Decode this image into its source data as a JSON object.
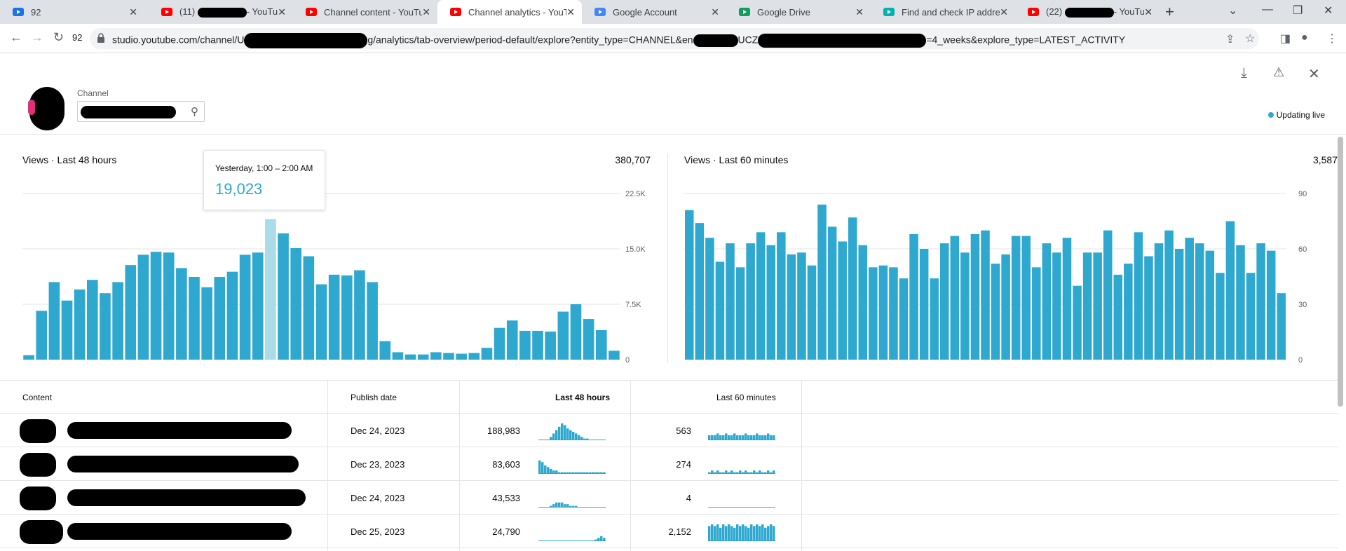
{
  "browser": {
    "tabs": [
      {
        "title": "92",
        "icon": "app-icon",
        "color": "#1a73e8"
      },
      {
        "title": "(11) ",
        "suffix": "- YouTube",
        "icon": "youtube-icon",
        "color": "#ff0000"
      },
      {
        "title": "Channel content - YouTube",
        "icon": "youtube-icon",
        "color": "#ff0000"
      },
      {
        "title": "Channel analytics - YouTube",
        "icon": "youtube-icon",
        "color": "#ff0000"
      },
      {
        "title": "Google Account",
        "icon": "google-icon",
        "color": "#4285f4"
      },
      {
        "title": "Google Drive",
        "icon": "drive-icon",
        "color": "#0f9d58"
      },
      {
        "title": "Find and check IP address",
        "icon": "web-icon",
        "color": "#00b3b3"
      },
      {
        "title": "(22) ",
        "suffix": "- YouTube",
        "icon": "youtube-icon",
        "color": "#ff0000"
      }
    ],
    "active_tab": 3,
    "profile_label": "92",
    "url": "studio.youtube.com/channel/U",
    "url_mid": "g/analytics/tab-overview/period-default/explore?entity_type=CHANNEL&en",
    "url_mid2": "UCZ",
    "url_end": "=4_weeks&explore_type=LATEST_ACTIVITY"
  },
  "header": {
    "channel_label": "Channel",
    "updating_live": "Updating live"
  },
  "chart48": {
    "title": "Views · Last 48 hours",
    "total": "380,707",
    "tooltip_time": "Yesterday, 1:00 – 2:00 AM",
    "tooltip_value": "19,023"
  },
  "chart60": {
    "title": "Views · Last 60 minutes",
    "total": "3,587"
  },
  "chart_data": [
    {
      "type": "bar",
      "title": "Views · Last 48 hours",
      "ylim": [
        0,
        22500
      ],
      "yticks": [
        "0",
        "7.5K",
        "15.0K",
        "22.5K"
      ],
      "ytick_values": [
        0,
        7500,
        15000,
        22500
      ],
      "highlight_index": 19,
      "values": [
        600,
        6600,
        10500,
        8000,
        9500,
        10800,
        9000,
        10500,
        12800,
        14200,
        14600,
        14500,
        12400,
        11200,
        9800,
        11200,
        11900,
        14200,
        14500,
        19023,
        17100,
        15100,
        14000,
        10200,
        11500,
        11400,
        12100,
        10500,
        2500,
        1000,
        700,
        700,
        1000,
        900,
        800,
        900,
        1600,
        4300,
        5300,
        3900,
        3900,
        3800,
        6500,
        7500,
        5500,
        4000,
        1200
      ],
      "color": "#2ea8cf"
    },
    {
      "type": "bar",
      "title": "Views · Last 60 minutes",
      "ylim": [
        0,
        90
      ],
      "yticks": [
        "0",
        "30",
        "60",
        "90"
      ],
      "ytick_values": [
        0,
        30,
        60,
        90
      ],
      "values": [
        81,
        74,
        66,
        53,
        63,
        50,
        63,
        69,
        62,
        69,
        57,
        58,
        51,
        84,
        72,
        64,
        77,
        62,
        50,
        51,
        50,
        44,
        68,
        60,
        44,
        63,
        67,
        58,
        68,
        70,
        52,
        57,
        67,
        67,
        50,
        63,
        58,
        66,
        40,
        58,
        58,
        70,
        46,
        52,
        69,
        56,
        63,
        70,
        60,
        66,
        63,
        59,
        47,
        75,
        62,
        47,
        63,
        59,
        36
      ],
      "color": "#2ea8cf"
    }
  ],
  "table": {
    "headers": {
      "content": "Content",
      "publish": "Publish date",
      "h48": "Last 48 hours",
      "m60": "Last 60 minutes"
    },
    "rows": [
      {
        "date": "Dec 24, 2023",
        "v48": "188,983",
        "v60": "563",
        "s48": [
          0,
          0,
          0,
          0,
          2,
          4,
          6,
          8,
          10,
          9,
          7,
          6,
          5,
          4,
          3,
          2,
          1,
          1,
          0,
          0,
          0,
          0,
          0,
          0
        ],
        "s60": [
          3,
          3,
          3,
          4,
          3,
          3,
          4,
          3,
          3,
          4,
          3,
          3,
          3,
          4,
          3,
          3,
          3,
          4,
          3,
          3,
          3,
          4,
          3,
          3
        ]
      },
      {
        "date": "Dec 23, 2023",
        "v48": "83,603",
        "v60": "274",
        "s48": [
          8,
          7,
          5,
          4,
          3,
          2,
          2,
          1,
          1,
          1,
          1,
          1,
          1,
          1,
          1,
          1,
          1,
          1,
          1,
          1,
          1,
          1,
          1,
          1
        ],
        "s60": [
          1,
          2,
          1,
          2,
          1,
          1,
          2,
          1,
          2,
          1,
          1,
          2,
          1,
          2,
          1,
          1,
          2,
          1,
          2,
          1,
          1,
          2,
          1,
          2
        ]
      },
      {
        "date": "Dec 24, 2023",
        "v48": "43,533",
        "v60": "4",
        "s48": [
          0,
          0,
          0,
          0,
          1,
          2,
          3,
          3,
          3,
          2,
          2,
          1,
          1,
          1,
          0,
          0,
          0,
          0,
          0,
          0,
          0,
          0,
          0,
          0
        ],
        "s60": [
          0,
          0,
          0,
          0,
          0,
          0,
          0,
          0,
          0,
          0,
          0,
          0,
          0,
          0,
          0,
          0,
          0,
          0,
          0,
          0,
          0,
          0,
          0,
          0
        ]
      },
      {
        "date": "Dec 25, 2023",
        "v48": "24,790",
        "v60": "2,152",
        "s48": [
          0,
          0,
          0,
          0,
          0,
          0,
          0,
          0,
          0,
          0,
          0,
          0,
          0,
          0,
          0,
          0,
          0,
          0,
          0,
          0,
          1,
          2,
          3,
          2
        ],
        "s60": [
          9,
          10,
          9,
          10,
          8,
          10,
          9,
          10,
          9,
          8,
          10,
          9,
          10,
          9,
          8,
          10,
          9,
          10,
          9,
          10,
          8,
          9,
          10,
          9
        ]
      }
    ]
  }
}
